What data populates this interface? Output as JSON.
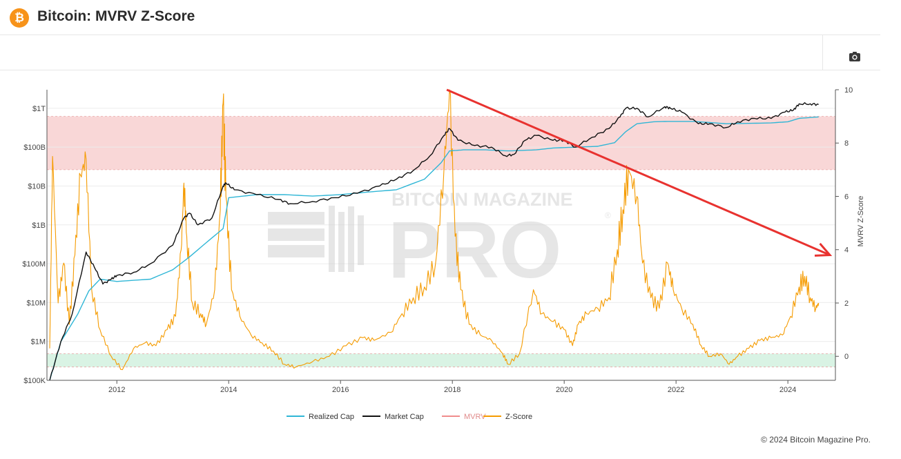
{
  "header": {
    "logo_glyph": "₿",
    "title": "Bitcoin: MVRV Z-Score"
  },
  "toolbar": {
    "camera_icon": "camera-icon"
  },
  "watermark": {
    "line1": "BITCOIN MAGAZINE",
    "line2": "PRO",
    "mark": "®"
  },
  "footer": {
    "copyright": "© 2024 Bitcoin Magazine Pro."
  },
  "chart_data": {
    "type": "line",
    "x_ticks": [
      "2012",
      "2014",
      "2016",
      "2018",
      "2020",
      "2022",
      "2024"
    ],
    "xlim": [
      2010.75,
      2024.85
    ],
    "left_axis": {
      "scale": "log",
      "ticks": [
        "$100K",
        "$1M",
        "$10M",
        "$100M",
        "$1B",
        "$10B",
        "$100B",
        "$1T"
      ],
      "ylim": [
        100000,
        3000000000000
      ]
    },
    "right_axis": {
      "label": "MVRV Z-Score",
      "ticks": [
        "0",
        "2",
        "4",
        "6",
        "8",
        "10"
      ],
      "ylim": [
        -0.9,
        10
      ]
    },
    "bands": [
      {
        "name": "top-zone",
        "axis": "right",
        "from": 7.0,
        "to": 9.0,
        "color": "#f9d7d7"
      },
      {
        "name": "bottom-zone",
        "axis": "right",
        "from": -0.4,
        "to": 0.1,
        "color": "#d9f3e4"
      }
    ],
    "legend": [
      "Realized Cap",
      "Market Cap",
      "MVRV",
      "Z-Score"
    ],
    "colors": {
      "Realized Cap": "#2fb6d6",
      "Market Cap": "#111111",
      "MVRV": "#f08c8c",
      "Z-Score": "#f59b00",
      "annotation": "#e8322f"
    },
    "annotation_arrow": {
      "from": [
        2017.9,
        10
      ],
      "to": [
        2024.85,
        3.8
      ]
    },
    "series": [
      {
        "name": "Market Cap",
        "axis": "left",
        "x": [
          2010.8,
          2011.0,
          2011.2,
          2011.45,
          2011.6,
          2011.75,
          2011.9,
          2012.0,
          2012.3,
          2012.6,
          2013.0,
          2013.2,
          2013.3,
          2013.45,
          2013.7,
          2013.9,
          2013.95,
          2014.1,
          2014.5,
          2014.9,
          2015.1,
          2015.5,
          2015.9,
          2016.3,
          2016.7,
          2017.0,
          2017.3,
          2017.6,
          2017.85,
          2017.95,
          2018.1,
          2018.4,
          2018.7,
          2018.95,
          2019.1,
          2019.3,
          2019.5,
          2019.8,
          2020.0,
          2020.2,
          2020.5,
          2020.8,
          2021.0,
          2021.1,
          2021.3,
          2021.5,
          2021.8,
          2021.9,
          2022.1,
          2022.4,
          2022.6,
          2022.9,
          2023.1,
          2023.4,
          2023.7,
          2023.95,
          2024.1,
          2024.2,
          2024.4,
          2024.55
        ],
        "values": [
          100000,
          1000000,
          5000000,
          200000000,
          80000000,
          30000000,
          40000000,
          50000000,
          60000000,
          100000000,
          300000000,
          1500000000,
          2000000000,
          1000000000,
          1500000000,
          10000000000,
          12000000000,
          8000000000,
          6000000000,
          4500000000,
          3500000000,
          4000000000,
          5000000000,
          6500000000,
          10000000000,
          15000000000,
          25000000000,
          60000000000,
          200000000000,
          300000000000,
          150000000000,
          110000000000,
          100000000000,
          60000000000,
          65000000000,
          150000000000,
          200000000000,
          150000000000,
          150000000000,
          100000000000,
          180000000000,
          300000000000,
          600000000000,
          1000000000000,
          1000000000000,
          600000000000,
          1100000000000,
          1000000000000,
          800000000000,
          400000000000,
          400000000000,
          320000000000,
          450000000000,
          550000000000,
          550000000000,
          800000000000,
          900000000000,
          1300000000000,
          1300000000000,
          1250000000000
        ]
      },
      {
        "name": "Realized Cap",
        "axis": "left",
        "x": [
          2010.8,
          2011.0,
          2011.3,
          2011.5,
          2011.7,
          2012.0,
          2012.6,
          2013.0,
          2013.3,
          2013.6,
          2013.9,
          2014.0,
          2014.5,
          2015.0,
          2015.5,
          2016.0,
          2016.5,
          2017.0,
          2017.5,
          2017.8,
          2017.95,
          2018.2,
          2018.6,
          2019.0,
          2019.5,
          2019.8,
          2020.2,
          2020.6,
          2020.9,
          2021.1,
          2021.3,
          2021.6,
          2021.9,
          2022.3,
          2022.6,
          2022.9,
          2023.3,
          2023.7,
          2024.0,
          2024.2,
          2024.55
        ],
        "values": [
          100000,
          1000000,
          5000000,
          20000000,
          40000000,
          35000000,
          40000000,
          70000000,
          150000000,
          350000000,
          800000000,
          5000000000,
          6000000000,
          6000000000,
          5500000000,
          6000000000,
          7000000000,
          8000000000,
          15000000000,
          40000000000,
          80000000000,
          85000000000,
          85000000000,
          80000000000,
          85000000000,
          95000000000,
          100000000000,
          105000000000,
          130000000000,
          250000000000,
          400000000000,
          450000000000,
          460000000000,
          460000000000,
          430000000000,
          400000000000,
          410000000000,
          420000000000,
          450000000000,
          550000000000,
          600000000000
        ]
      },
      {
        "name": "Z-Score",
        "axis": "right",
        "x": [
          2010.8,
          2010.85,
          2010.95,
          2011.05,
          2011.15,
          2011.25,
          2011.35,
          2011.45,
          2011.55,
          2011.7,
          2011.9,
          2012.1,
          2012.3,
          2012.5,
          2012.7,
          2012.9,
          2013.05,
          2013.15,
          2013.2,
          2013.25,
          2013.35,
          2013.5,
          2013.6,
          2013.75,
          2013.85,
          2013.9,
          2013.95,
          2014.05,
          2014.2,
          2014.4,
          2014.6,
          2014.8,
          2015.0,
          2015.2,
          2015.5,
          2015.8,
          2016.1,
          2016.4,
          2016.6,
          2016.9,
          2017.1,
          2017.3,
          2017.5,
          2017.7,
          2017.85,
          2017.95,
          2018.05,
          2018.15,
          2018.3,
          2018.5,
          2018.7,
          2018.9,
          2019.0,
          2019.2,
          2019.45,
          2019.6,
          2019.8,
          2020.0,
          2020.15,
          2020.25,
          2020.4,
          2020.6,
          2020.8,
          2020.95,
          2021.05,
          2021.15,
          2021.3,
          2021.4,
          2021.55,
          2021.7,
          2021.85,
          2021.95,
          2022.1,
          2022.3,
          2022.45,
          2022.6,
          2022.8,
          2022.95,
          2023.1,
          2023.3,
          2023.5,
          2023.7,
          2023.9,
          2024.05,
          2024.2,
          2024.3,
          2024.4,
          2024.5,
          2024.55
        ],
        "values": [
          0.3,
          7.5,
          2.0,
          3.5,
          1.2,
          3.8,
          6.8,
          7.4,
          2.5,
          1.0,
          0.0,
          -0.5,
          0.3,
          0.5,
          0.4,
          1.0,
          1.5,
          4.0,
          6.5,
          4.5,
          2.0,
          1.6,
          1.2,
          2.5,
          5.5,
          9.5,
          6.0,
          2.5,
          1.5,
          0.8,
          0.5,
          0.2,
          -0.3,
          -0.4,
          -0.2,
          0.0,
          0.4,
          0.7,
          0.6,
          0.9,
          1.6,
          2.2,
          2.6,
          3.5,
          7.0,
          10.0,
          4.5,
          2.5,
          1.2,
          0.8,
          0.6,
          0.1,
          -0.3,
          0.1,
          2.5,
          1.6,
          1.3,
          1.0,
          0.4,
          1.2,
          1.6,
          1.8,
          2.2,
          4.0,
          5.5,
          7.0,
          6.0,
          3.5,
          2.2,
          1.8,
          3.5,
          2.5,
          1.8,
          1.2,
          0.4,
          0.0,
          0.1,
          -0.3,
          0.0,
          0.3,
          0.6,
          0.7,
          0.8,
          1.5,
          2.6,
          3.0,
          2.2,
          1.8,
          2.0
        ]
      }
    ]
  }
}
